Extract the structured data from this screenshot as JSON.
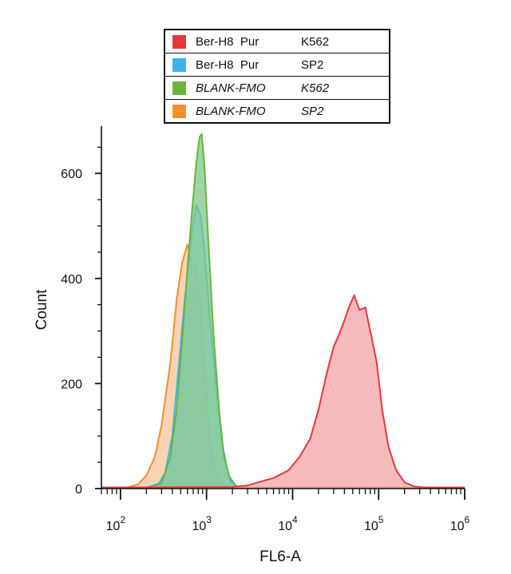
{
  "chart_data": {
    "type": "area",
    "xlabel": "FL6-A",
    "ylabel": "Count",
    "x_scale": "log",
    "xlim": [
      60,
      1000000
    ],
    "ylim": [
      0,
      690
    ],
    "x_ticks": [
      {
        "base": "10",
        "exp": "2"
      },
      {
        "base": "10",
        "exp": "3"
      },
      {
        "base": "10",
        "exp": "4"
      },
      {
        "base": "10",
        "exp": "5"
      },
      {
        "base": "10",
        "exp": "6"
      }
    ],
    "y_ticks": [
      "0",
      "200",
      "400",
      "600"
    ],
    "legend_position": "top-center",
    "legend": [
      {
        "label": "Ber-H8  Pur",
        "cell": "K562",
        "italic": false,
        "color": "#e8363d"
      },
      {
        "label": "Ber-H8  Pur",
        "cell": "SP2",
        "italic": false,
        "color": "#3ab4e8"
      },
      {
        "label": "BLANK-FMO",
        "cell": "K562",
        "italic": true,
        "color": "#6db33f"
      },
      {
        "label": "BLANK-FMO",
        "cell": "SP2",
        "italic": true,
        "color": "#f0902c"
      }
    ],
    "series": [
      {
        "name": "BLANK-FMO SP2",
        "color": "#f0902c",
        "fill": "#f7c49a",
        "points": [
          [
            60,
            2
          ],
          [
            120,
            2
          ],
          [
            160,
            8
          ],
          [
            200,
            25
          ],
          [
            250,
            60
          ],
          [
            300,
            120
          ],
          [
            380,
            240
          ],
          [
            450,
            360
          ],
          [
            520,
            430
          ],
          [
            600,
            465
          ],
          [
            650,
            440
          ],
          [
            750,
            420
          ],
          [
            850,
            350
          ],
          [
            950,
            220
          ],
          [
            1100,
            90
          ],
          [
            1300,
            25
          ],
          [
            1600,
            5
          ],
          [
            2000,
            2
          ],
          [
            1000000,
            2
          ]
        ]
      },
      {
        "name": "Ber-H8 Pur SP2",
        "color": "#3ab4e8",
        "fill": "#9fd8f1",
        "points": [
          [
            60,
            2
          ],
          [
            200,
            2
          ],
          [
            280,
            10
          ],
          [
            330,
            30
          ],
          [
            400,
            100
          ],
          [
            480,
            240
          ],
          [
            550,
            350
          ],
          [
            620,
            430
          ],
          [
            680,
            490
          ],
          [
            760,
            540
          ],
          [
            850,
            520
          ],
          [
            950,
            450
          ],
          [
            1100,
            320
          ],
          [
            1300,
            190
          ],
          [
            1500,
            90
          ],
          [
            1800,
            25
          ],
          [
            2200,
            5
          ],
          [
            3000,
            2
          ],
          [
            1000000,
            2
          ]
        ]
      },
      {
        "name": "BLANK-FMO K562",
        "color": "#6db33f",
        "fill": "#7cc68b",
        "points": [
          [
            60,
            2
          ],
          [
            220,
            2
          ],
          [
            300,
            10
          ],
          [
            380,
            60
          ],
          [
            450,
            150
          ],
          [
            520,
            280
          ],
          [
            600,
            420
          ],
          [
            680,
            530
          ],
          [
            760,
            620
          ],
          [
            830,
            670
          ],
          [
            880,
            675
          ],
          [
            950,
            610
          ],
          [
            1050,
            470
          ],
          [
            1200,
            300
          ],
          [
            1400,
            150
          ],
          [
            1600,
            60
          ],
          [
            1900,
            15
          ],
          [
            2300,
            3
          ],
          [
            3000,
            2
          ],
          [
            1000000,
            2
          ]
        ]
      },
      {
        "name": "Ber-H8 Pur K562",
        "color": "#e8363d",
        "fill": "#f3a3a7",
        "points": [
          [
            60,
            2
          ],
          [
            2000,
            3
          ],
          [
            3000,
            6
          ],
          [
            4000,
            12
          ],
          [
            6000,
            20
          ],
          [
            9000,
            35
          ],
          [
            12000,
            60
          ],
          [
            16000,
            95
          ],
          [
            20000,
            150
          ],
          [
            25000,
            220
          ],
          [
            30000,
            270
          ],
          [
            35000,
            295
          ],
          [
            40000,
            320
          ],
          [
            45000,
            345
          ],
          [
            52000,
            368
          ],
          [
            60000,
            340
          ],
          [
            70000,
            345
          ],
          [
            80000,
            300
          ],
          [
            95000,
            240
          ],
          [
            110000,
            150
          ],
          [
            130000,
            80
          ],
          [
            160000,
            35
          ],
          [
            200000,
            12
          ],
          [
            260000,
            4
          ],
          [
            350000,
            2
          ],
          [
            1000000,
            2
          ]
        ]
      }
    ]
  }
}
